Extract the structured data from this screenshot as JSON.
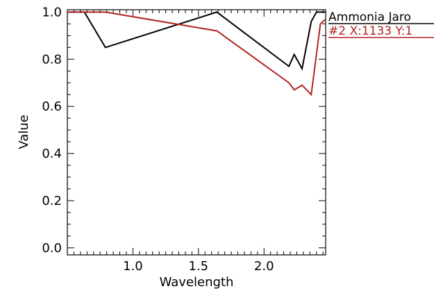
{
  "chart_data": {
    "type": "line",
    "xlabel": "Wavelength",
    "ylabel": "Value",
    "xlim": [
      0.5,
      2.47
    ],
    "ylim": [
      -0.03,
      1.01
    ],
    "x_ticks": [
      1.0,
      1.5,
      2.0
    ],
    "x_tick_labels": [
      "1.0",
      "1.5",
      "2.0"
    ],
    "y_ticks": [
      0.0,
      0.2,
      0.4,
      0.6,
      0.8,
      1.0
    ],
    "y_tick_labels": [
      "0.0",
      "0.2",
      "0.4",
      "0.6",
      "0.8",
      "1.0"
    ],
    "grid": false,
    "legend_placement": "outside-right",
    "series": [
      {
        "name": "Ammonia Jaro",
        "color": "#000000",
        "x": [
          0.5,
          0.63,
          0.79,
          1.64,
          2.19,
          2.23,
          2.29,
          2.36,
          2.4,
          2.47
        ],
        "y": [
          1.0,
          1.0,
          0.85,
          1.0,
          0.77,
          0.82,
          0.76,
          0.96,
          1.0,
          1.0
        ]
      },
      {
        "name": "#2 X:1133 Y:1",
        "color": "#b22222",
        "x": [
          0.5,
          0.63,
          0.79,
          1.64,
          2.19,
          2.23,
          2.29,
          2.36,
          2.43,
          2.47
        ],
        "y": [
          1.0,
          1.0,
          1.0,
          0.92,
          0.7,
          0.67,
          0.69,
          0.65,
          0.95,
          0.97
        ]
      }
    ]
  }
}
